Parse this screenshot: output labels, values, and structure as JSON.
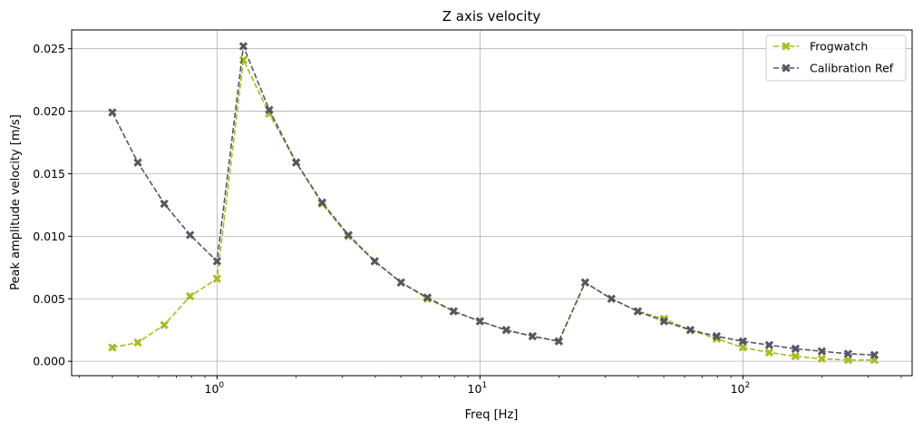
{
  "chart_data": {
    "type": "line",
    "title": "Z axis velocity",
    "xlabel": "Freq [Hz]",
    "ylabel": "Peak amplitude velocity [m/s]",
    "xscale": "log",
    "xlim": [
      0.28,
      440
    ],
    "ylim": [
      -0.00115,
      0.0265
    ],
    "grid": true,
    "legend_position": "top-right",
    "x_ticks": [
      {
        "value": 1,
        "base": "10",
        "exp": "0"
      },
      {
        "value": 10,
        "base": "10",
        "exp": "1"
      },
      {
        "value": 100,
        "base": "10",
        "exp": "2"
      }
    ],
    "y_ticks": [
      "0.000",
      "0.005",
      "0.010",
      "0.015",
      "0.020",
      "0.025"
    ],
    "x": [
      0.4,
      0.5,
      0.63,
      0.79,
      1.0,
      1.26,
      1.58,
      2.0,
      2.51,
      3.16,
      3.98,
      5.01,
      6.31,
      7.94,
      10.0,
      12.59,
      15.85,
      19.95,
      25.12,
      31.62,
      39.81,
      50.12,
      63.1,
      79.43,
      100.0,
      125.89,
      158.49,
      199.53,
      251.19,
      316.23
    ],
    "series": [
      {
        "name": "Frogwatch",
        "color": "#aabb22",
        "marker": "x",
        "values": [
          0.0011,
          0.0015,
          0.0029,
          0.0052,
          0.0066,
          0.0241,
          0.0198,
          0.0159,
          0.0126,
          0.01,
          0.008,
          0.0063,
          0.005,
          0.004,
          0.0032,
          0.0025,
          0.002,
          0.0016,
          0.0063,
          0.005,
          0.004,
          0.0034,
          0.0025,
          0.0018,
          0.0011,
          0.0007,
          0.0004,
          0.0002,
          0.0001,
          0.0001
        ]
      },
      {
        "name": "Calibration Ref",
        "color": "#555566",
        "marker": "x",
        "values": [
          0.0199,
          0.0159,
          0.0126,
          0.0101,
          0.008,
          0.0252,
          0.0201,
          0.0159,
          0.0127,
          0.0101,
          0.008,
          0.0063,
          0.0051,
          0.004,
          0.0032,
          0.0025,
          0.002,
          0.0016,
          0.0063,
          0.005,
          0.004,
          0.0032,
          0.0025,
          0.002,
          0.0016,
          0.0013,
          0.001,
          0.0008,
          0.0006,
          0.0005
        ]
      }
    ]
  }
}
